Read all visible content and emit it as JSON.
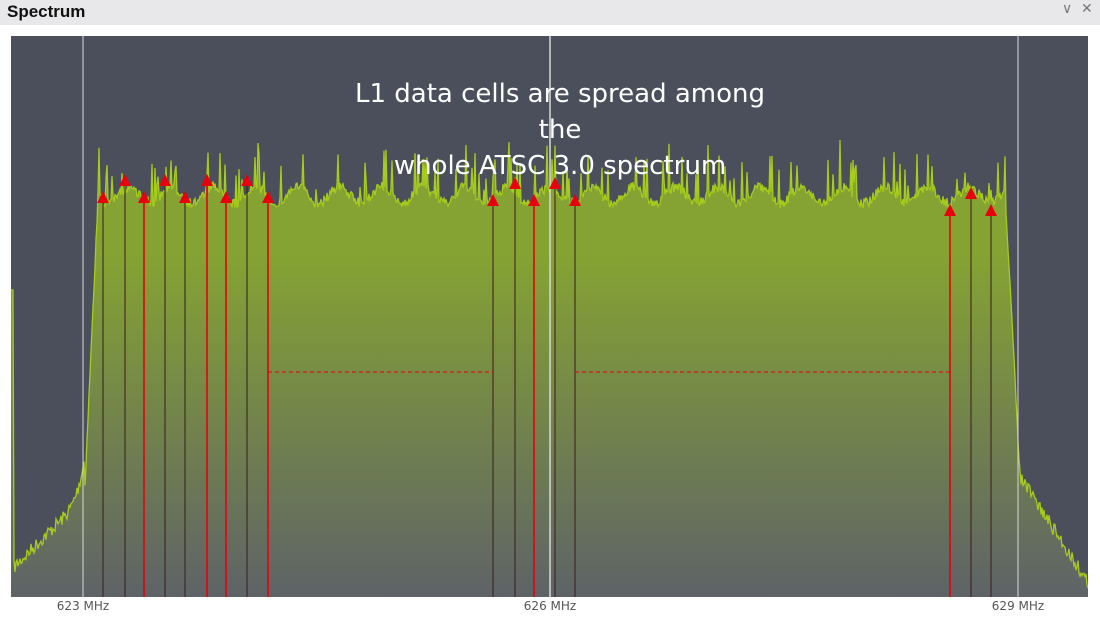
{
  "window": {
    "title": "Spectrum",
    "collapse_icon": "chevron-down-icon",
    "close_icon": "close-icon"
  },
  "plot": {
    "annotation": [
      "L1 data cells are spread among the",
      "whole ATSC 3.0 spectrum"
    ],
    "x_ticks": [
      "623 MHz",
      "626 MHz",
      "629 MHz"
    ],
    "colors": {
      "background": "#4a4f5b",
      "trace": "#a6cc1c",
      "fill_top": "#85a332",
      "fill_bottom": "#5e6367",
      "marker": "#e8000f",
      "gridline": "#d8d8d8"
    }
  }
}
